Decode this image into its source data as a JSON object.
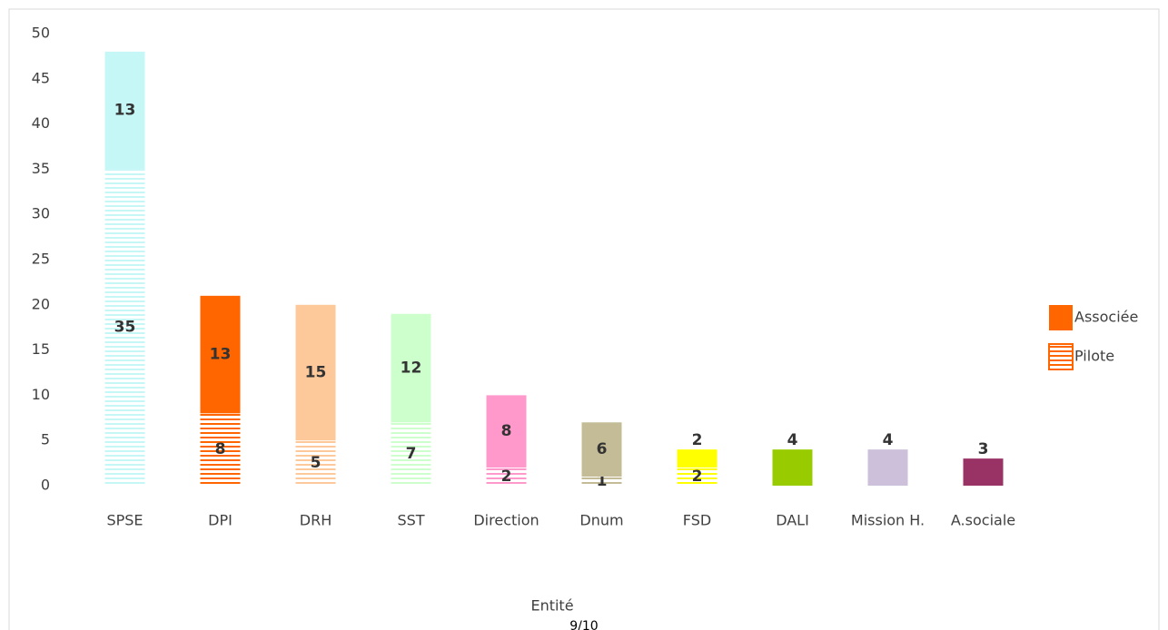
{
  "chart_data": {
    "type": "bar",
    "stacked": true,
    "categories": [
      "SPSE",
      "DPI",
      "DRH",
      "SST",
      "Direction",
      "Dnum",
      "FSD",
      "DALI",
      "Mission H.",
      "A.sociale"
    ],
    "colors": [
      "#c6f7f7",
      "#ff6600",
      "#fdc89a",
      "#ccffcc",
      "#ff99cc",
      "#c4bc96",
      "#ffff00",
      "#99cc00",
      "#ccc0da",
      "#993366"
    ],
    "series": [
      {
        "name": "Pilote",
        "color": "#ff6600",
        "pattern": "horizontal-lines",
        "values": [
          35,
          8,
          5,
          7,
          2,
          1,
          2,
          null,
          null,
          null
        ]
      },
      {
        "name": "Associée",
        "color": "#ff6600",
        "values": [
          13,
          13,
          15,
          12,
          8,
          6,
          2,
          4,
          4,
          3
        ]
      }
    ],
    "xlabel": "Entité",
    "ylim": [
      0,
      50
    ],
    "yticks": [
      0,
      5,
      10,
      15,
      20,
      25,
      30,
      35,
      40,
      45,
      50
    ],
    "grid": false,
    "legend": "right",
    "page_number": "9/10"
  }
}
